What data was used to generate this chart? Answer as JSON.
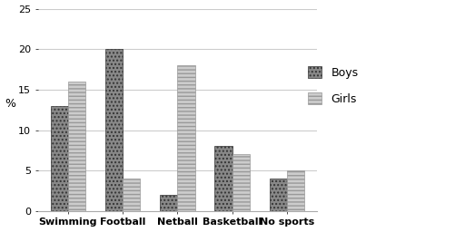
{
  "categories": [
    "Swimming",
    "Football",
    "Netball",
    "Basketball",
    "No sports"
  ],
  "boys": [
    13,
    20,
    2,
    8,
    4
  ],
  "girls": [
    16,
    4,
    18,
    7,
    5
  ],
  "ylabel": "%",
  "ylim": [
    0,
    25
  ],
  "yticks": [
    0,
    5,
    10,
    15,
    20,
    25
  ],
  "bar_width": 0.32,
  "boys_hatch": "....",
  "girls_hatch": "----",
  "boys_facecolor": "#888888",
  "girls_facecolor": "#cccccc",
  "boys_edgecolor": "#333333",
  "girls_edgecolor": "#999999",
  "legend_boys": "Boys",
  "legend_girls": "Girls",
  "tick_fontsize": 8,
  "label_fontsize": 9,
  "background_color": "#ffffff",
  "grid_color": "#cccccc",
  "figsize": [
    5.12,
    2.56
  ],
  "dpi": 100
}
